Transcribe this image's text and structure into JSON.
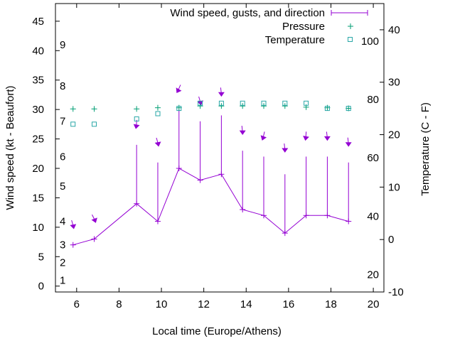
{
  "chart_data": {
    "type": "line",
    "xlabel": "Local time (Europe/Athens)",
    "ylabel_left": "Wind speed (kt - Beaufort)",
    "ylabel_right": "Temperature (C - F)",
    "xlim": [
      5,
      20.5
    ],
    "ylim_left": [
      -1,
      48
    ],
    "ylim_right": [
      -10,
      45
    ],
    "x_ticks": [
      6,
      8,
      10,
      12,
      14,
      16,
      18,
      20
    ],
    "x_tick_labels": [
      "6",
      "8",
      "10",
      "12",
      "14",
      "16",
      "18",
      "20"
    ],
    "y_left_ticks": [
      0,
      5,
      10,
      15,
      20,
      25,
      30,
      35,
      40,
      45
    ],
    "y_left_tick_labels": [
      "0",
      "5",
      "10",
      "15",
      "20",
      "25",
      "30",
      "35",
      "40",
      "45"
    ],
    "y_right_ticks": [
      -10,
      0,
      10,
      20,
      30,
      40
    ],
    "y_right_tick_labels": [
      "-10",
      "0",
      "10",
      "20",
      "30",
      "40"
    ],
    "beaufort_labels": [
      {
        "text": "1",
        "y": 1
      },
      {
        "text": "2",
        "y": 4
      },
      {
        "text": "3",
        "y": 7
      },
      {
        "text": "4",
        "y": 11
      },
      {
        "text": "5",
        "y": 17
      },
      {
        "text": "6",
        "y": 22
      },
      {
        "text": "7",
        "y": 28
      },
      {
        "text": "8",
        "y": 34
      },
      {
        "text": "9",
        "y": 41
      }
    ],
    "fahrenheit_labels": [
      {
        "text": "20",
        "y": -6.7
      },
      {
        "text": "40",
        "y": 4.4
      },
      {
        "text": "60",
        "y": 15.6
      },
      {
        "text": "80",
        "y": 26.7
      },
      {
        "text": "100",
        "y": 37.8
      }
    ],
    "legend": {
      "position": "top-right",
      "entries": [
        {
          "label": "Wind speed, gusts, and direction",
          "marker": "line"
        },
        {
          "label": "Pressure",
          "marker": "plus"
        },
        {
          "label": "Temperature",
          "marker": "square"
        }
      ]
    },
    "series": [
      {
        "name": "Wind speed, gusts, and direction",
        "axis": "left",
        "x": [
          5.83,
          6.83,
          8.83,
          9.83,
          10.83,
          11.83,
          12.83,
          13.83,
          14.83,
          15.83,
          16.83,
          17.83,
          18.83
        ],
        "values": [
          7,
          8,
          14,
          11,
          20,
          18,
          19,
          13,
          12,
          9,
          12,
          12,
          11
        ],
        "gusts": [
          7,
          8,
          24,
          21,
          30,
          28,
          29,
          23,
          22,
          19,
          22,
          22,
          21
        ],
        "direction_y": [
          10.5,
          11.5,
          27.5,
          24.5,
          33.5,
          31.5,
          33,
          26.5,
          25.5,
          23.5,
          25.5,
          25.5,
          24.5
        ],
        "direction_deg": [
          350,
          340,
          10,
          350,
          30,
          350,
          0,
          0,
          20,
          0,
          10,
          0,
          0
        ],
        "color": "#9400d3"
      },
      {
        "name": "Pressure",
        "axis": "left",
        "marker": "plus",
        "x": [
          5.83,
          6.83,
          8.83,
          9.83,
          10.83,
          11.83,
          12.83,
          13.83,
          14.83,
          15.83,
          16.83,
          17.83,
          18.83
        ],
        "values": [
          30.1,
          30.1,
          30.1,
          30.3,
          30.3,
          30.6,
          30.6,
          30.6,
          30.6,
          30.6,
          30.4,
          30.3,
          30.2
        ],
        "color": "#009e73"
      },
      {
        "name": "Temperature",
        "axis": "right",
        "marker": "square",
        "x": [
          5.83,
          6.83,
          8.83,
          9.83,
          10.83,
          11.83,
          12.83,
          13.83,
          14.83,
          15.83,
          16.83,
          17.83,
          18.83
        ],
        "values": [
          22,
          22,
          23,
          24,
          25,
          26,
          26,
          26,
          26,
          26,
          26,
          25,
          25
        ],
        "color": "#2aa7a7"
      }
    ]
  }
}
